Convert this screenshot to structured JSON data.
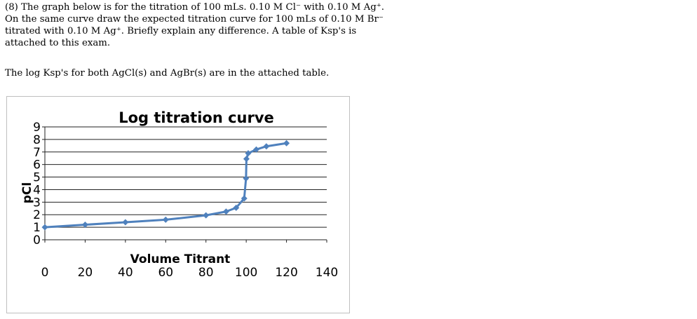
{
  "question": {
    "line1": "(8) The graph below is for the titration of 100 mLs. 0.10 M Cl⁻ with 0.10 M Ag⁺.",
    "line2": "On the same curve draw the expected titration curve for 100 mLs of 0.10 M Br⁻",
    "line3": "titrated with 0.10 M Ag⁺.  Briefly explain any difference.  A table of Ksp's is",
    "line4": "attached to this exam.",
    "note": "The log Ksp's for both AgCl(s) and AgBr(s) are in the attached table."
  },
  "chart_data": {
    "type": "line",
    "title": "Log titration curve",
    "xlabel": "Volume Titrant",
    "ylabel": "pCl",
    "xlim": [
      0,
      140
    ],
    "ylim": [
      0,
      9
    ],
    "xticks": [
      "0",
      "20",
      "40",
      "60",
      "80",
      "100",
      "120",
      "140"
    ],
    "yticks": [
      "0",
      "1",
      "2",
      "3",
      "4",
      "5",
      "6",
      "7",
      "8",
      "9"
    ],
    "grid": true,
    "series_color": "#4f81bd",
    "series": [
      {
        "x": [
          0,
          20,
          40,
          60,
          80,
          90,
          95,
          99,
          99.9,
          100.1,
          101,
          105,
          110,
          120
        ],
        "y": [
          1.0,
          1.2,
          1.4,
          1.6,
          1.95,
          2.25,
          2.55,
          3.3,
          4.9,
          6.45,
          6.9,
          7.2,
          7.45,
          7.7
        ]
      }
    ]
  }
}
